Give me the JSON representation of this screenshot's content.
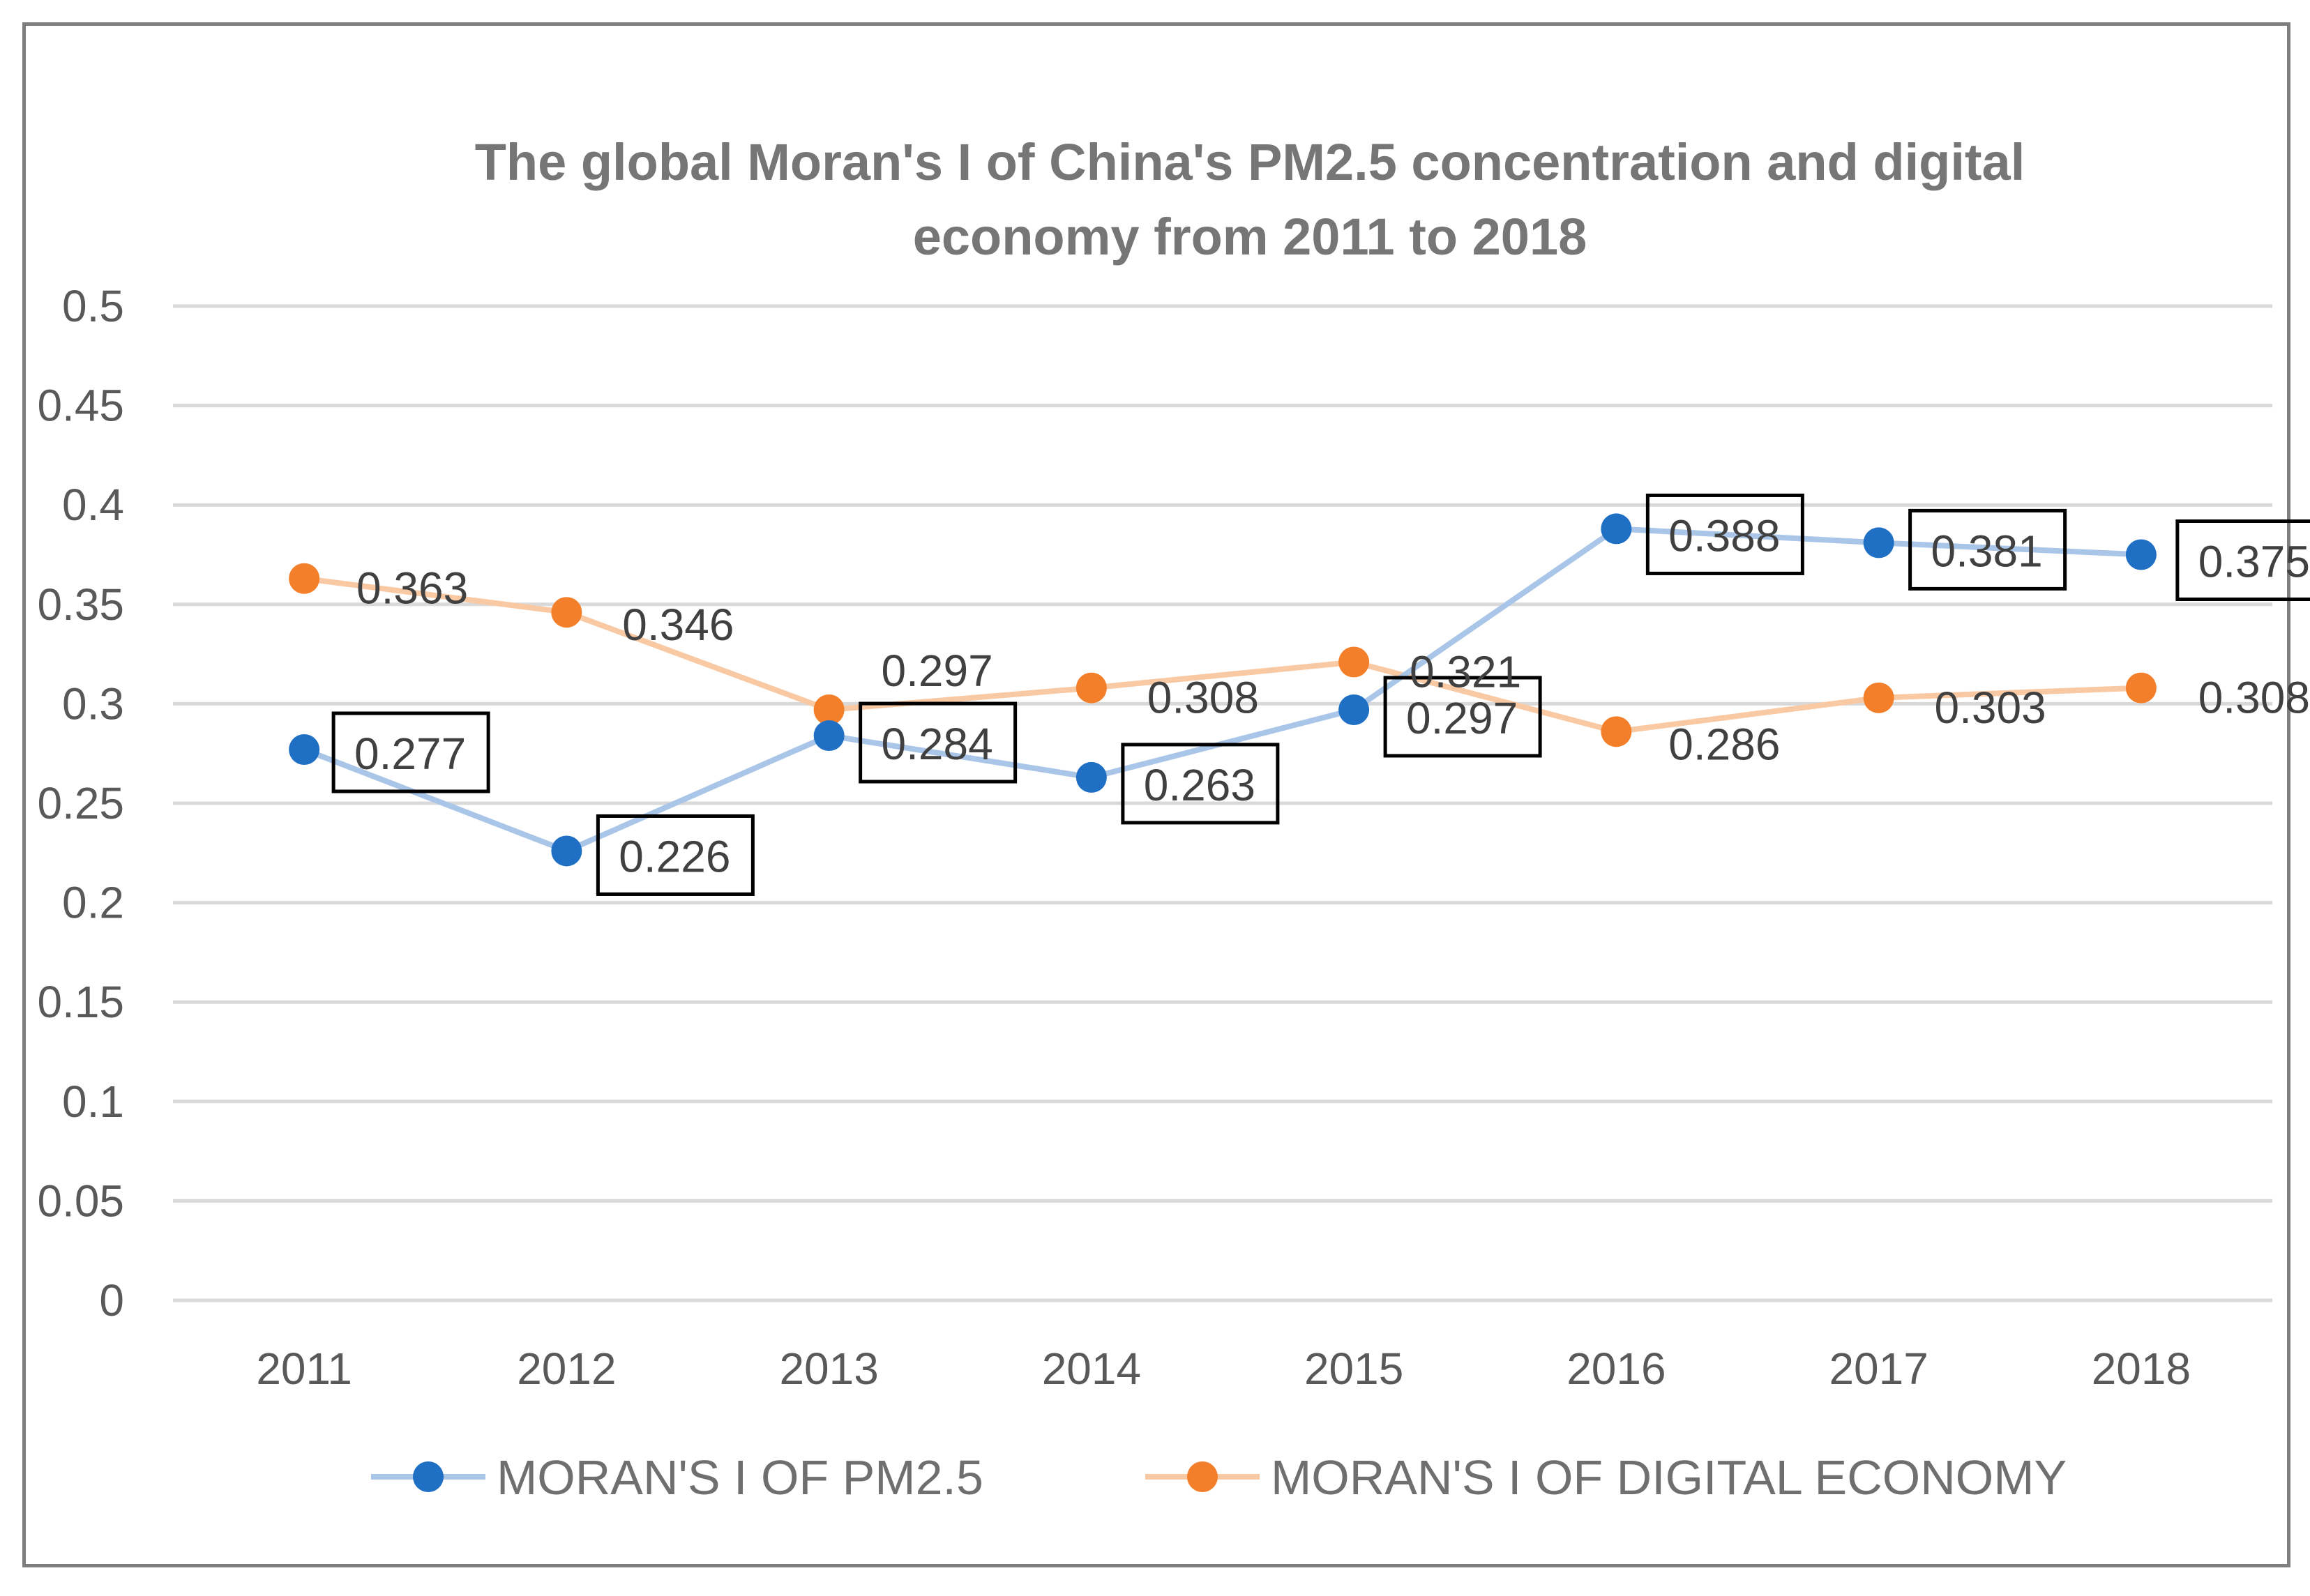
{
  "chart_data": {
    "type": "line",
    "title": "The global Moran's I of China's PM2.5 concentration and digital economy from 2011 to 2018",
    "title_lines": [
      "The global Moran's I of China's PM2.5 concentration and digital",
      "economy from 2011 to 2018"
    ],
    "categories": [
      "2011",
      "2012",
      "2013",
      "2014",
      "2015",
      "2016",
      "2017",
      "2018"
    ],
    "y_ticks": [
      "0",
      "0.05",
      "0.1",
      "0.15",
      "0.2",
      "0.25",
      "0.3",
      "0.35",
      "0.4",
      "0.45",
      "0.5"
    ],
    "ylim": [
      0,
      0.5
    ],
    "xlabel": "",
    "ylabel": "",
    "grid": true,
    "legend_position": "bottom",
    "series": [
      {
        "name": "MORAN'S I OF PM2.5",
        "values": [
          0.277,
          0.226,
          0.284,
          0.263,
          0.297,
          0.388,
          0.381,
          0.375
        ],
        "labels": [
          "0.277",
          "0.226",
          "0.284",
          "0.263",
          "0.297",
          "0.388",
          "0.381",
          "0.375"
        ],
        "line_color": "#a9c5e8",
        "marker_color": "#1f6fc5",
        "boxed_labels": true
      },
      {
        "name": "MORAN'S I OF DIGITAL ECONOMY",
        "values": [
          0.363,
          0.346,
          0.297,
          0.308,
          0.321,
          0.286,
          0.303,
          0.308
        ],
        "labels": [
          "0.363",
          "0.346",
          "0.297",
          "0.308",
          "0.321",
          "0.286",
          "0.303",
          "0.308"
        ],
        "line_color": "#f9c9a4",
        "marker_color": "#f47f2a",
        "boxed_labels": false
      }
    ]
  },
  "colors": {
    "gridline": "#d9d9d9",
    "frame": "#7f7f7f"
  }
}
